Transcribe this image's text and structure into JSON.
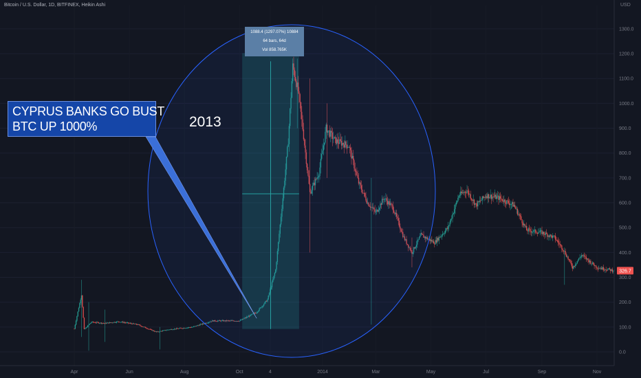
{
  "header": {
    "symbol_line": "Bitcoin / U.S. Dollar, 1D, BITFINEX, Heikin Ashi",
    "currency": "USD"
  },
  "annotations": {
    "callout_line1": "CYPRUS BANKS GO BUST",
    "callout_line2": "BTC UP 1000%",
    "year_label": "2013",
    "measure_line1": "1088.4 (1297.07%) 10884",
    "measure_line2": "64 bars, 64d",
    "measure_line3": "Vol 858.765K"
  },
  "colors": {
    "background": "#131722",
    "up": "#26a69a",
    "down": "#ef5350",
    "callout_fill": "#1546a8",
    "circle": "#2962ff",
    "price_tag": "#ef5350"
  },
  "chart_data": {
    "type": "candlestick",
    "title": "",
    "xlabel": "",
    "ylabel": "",
    "y_ticks": [
      "0.0",
      "100.0",
      "200.0",
      "300.0",
      "400.0",
      "500.0",
      "600.0",
      "700.0",
      "800.0",
      "900.0",
      "1000.0",
      "1100.0",
      "1200.0",
      "1300.0"
    ],
    "x_ticks": [
      "Apr",
      "Jun",
      "Aug",
      "Oct",
      "4",
      "2014",
      "Mar",
      "May",
      "Jul",
      "Sep",
      "Nov"
    ],
    "ylim": [
      -30,
      1380
    ],
    "last_price": "326.7",
    "x_start": "2013-04-01",
    "x_end": "2014-11-20",
    "price_path": [
      [
        "2013-04-01",
        93
      ],
      [
        "2013-04-09",
        230
      ],
      [
        "2013-04-12",
        90
      ],
      [
        "2013-04-20",
        120
      ],
      [
        "2013-05-05",
        115
      ],
      [
        "2013-05-20",
        122
      ],
      [
        "2013-06-10",
        110
      ],
      [
        "2013-07-01",
        80
      ],
      [
        "2013-07-15",
        90
      ],
      [
        "2013-08-10",
        100
      ],
      [
        "2013-09-01",
        125
      ],
      [
        "2013-09-20",
        125
      ],
      [
        "2013-10-01",
        125
      ],
      [
        "2013-10-20",
        160
      ],
      [
        "2013-11-01",
        210
      ],
      [
        "2013-11-10",
        330
      ],
      [
        "2013-11-18",
        620
      ],
      [
        "2013-11-24",
        850
      ],
      [
        "2013-11-29",
        1150
      ],
      [
        "2013-12-05",
        1050
      ],
      [
        "2013-12-10",
        900
      ],
      [
        "2013-12-18",
        640
      ],
      [
        "2013-12-28",
        720
      ],
      [
        "2014-01-05",
        900
      ],
      [
        "2014-01-15",
        850
      ],
      [
        "2014-01-30",
        830
      ],
      [
        "2014-02-10",
        680
      ],
      [
        "2014-02-20",
        600
      ],
      [
        "2014-03-01",
        560
      ],
      [
        "2014-03-10",
        620
      ],
      [
        "2014-03-20",
        580
      ],
      [
        "2014-04-01",
        460
      ],
      [
        "2014-04-10",
        400
      ],
      [
        "2014-04-20",
        470
      ],
      [
        "2014-05-05",
        440
      ],
      [
        "2014-05-20",
        500
      ],
      [
        "2014-06-01",
        630
      ],
      [
        "2014-06-10",
        650
      ],
      [
        "2014-06-20",
        590
      ],
      [
        "2014-07-01",
        630
      ],
      [
        "2014-07-15",
        620
      ],
      [
        "2014-08-01",
        590
      ],
      [
        "2014-08-15",
        490
      ],
      [
        "2014-09-01",
        480
      ],
      [
        "2014-09-15",
        460
      ],
      [
        "2014-09-25",
        410
      ],
      [
        "2014-10-05",
        340
      ],
      [
        "2014-10-15",
        390
      ],
      [
        "2014-11-01",
        340
      ],
      [
        "2014-11-20",
        327
      ]
    ],
    "measure_range": {
      "x_start": "2013-10-04",
      "x_end": "2013-12-06",
      "y_low": 92,
      "y_high": 1180
    }
  }
}
